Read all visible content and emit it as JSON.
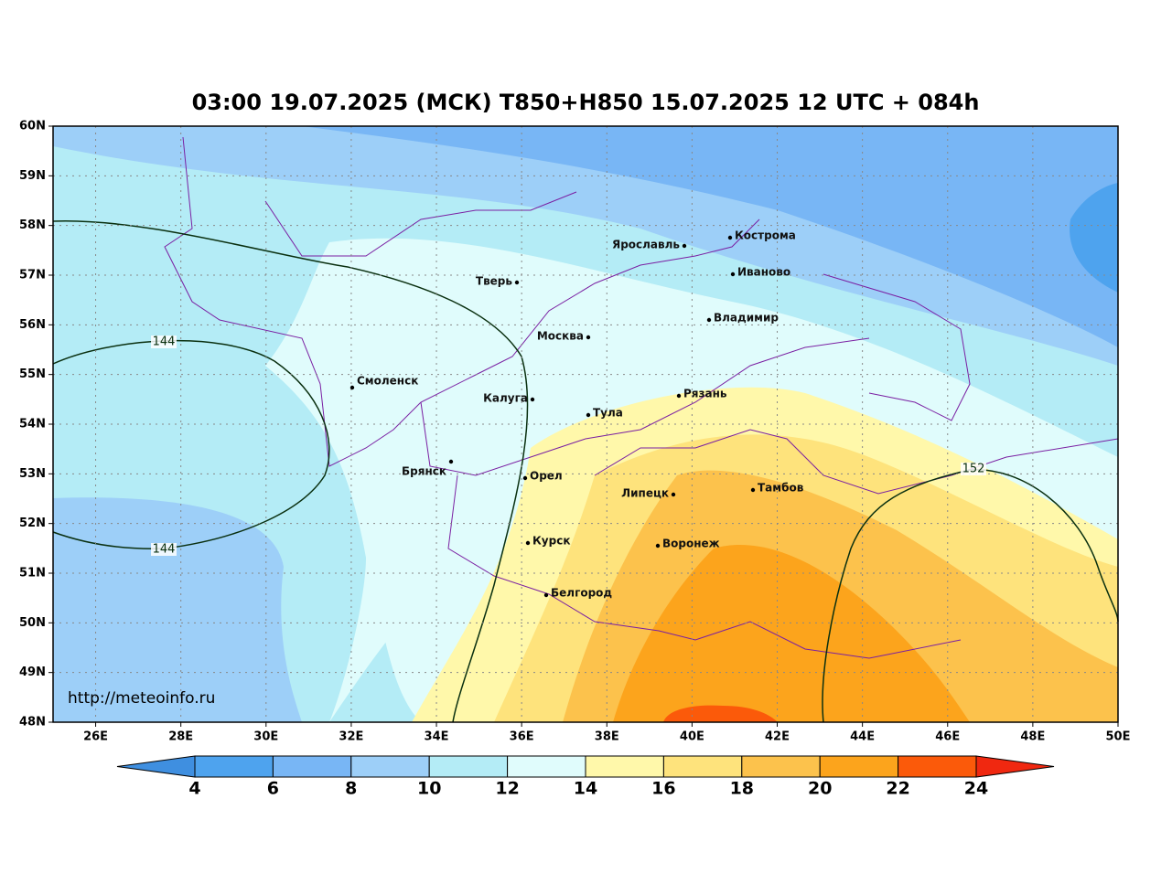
{
  "title": "03:00 19.07.2025 (МСК) T850+H850 15.07.2025 12 UTC + 084h",
  "url": "http://meteoinfo.ru",
  "lonlim": [
    25,
    50
  ],
  "latlim": [
    48,
    60
  ],
  "lon_ticks": [
    {
      "value": 26,
      "label": "26E"
    },
    {
      "value": 28,
      "label": "28E"
    },
    {
      "value": 30,
      "label": "30E"
    },
    {
      "value": 32,
      "label": "32E"
    },
    {
      "value": 34,
      "label": "34E"
    },
    {
      "value": 36,
      "label": "36E"
    },
    {
      "value": 38,
      "label": "38E"
    },
    {
      "value": 40,
      "label": "40E"
    },
    {
      "value": 42,
      "label": "42E"
    },
    {
      "value": 44,
      "label": "44E"
    },
    {
      "value": 46,
      "label": "46E"
    },
    {
      "value": 48,
      "label": "48E"
    },
    {
      "value": 50,
      "label": "50E"
    }
  ],
  "lat_ticks": [
    {
      "value": 48,
      "label": "48N"
    },
    {
      "value": 49,
      "label": "49N"
    },
    {
      "value": 50,
      "label": "50N"
    },
    {
      "value": 51,
      "label": "51N"
    },
    {
      "value": 52,
      "label": "52N"
    },
    {
      "value": 53,
      "label": "53N"
    },
    {
      "value": 54,
      "label": "54N"
    },
    {
      "value": 55,
      "label": "55N"
    },
    {
      "value": 56,
      "label": "56N"
    },
    {
      "value": 57,
      "label": "57N"
    },
    {
      "value": 58,
      "label": "58N"
    },
    {
      "value": 59,
      "label": "59N"
    },
    {
      "value": 60,
      "label": "60N"
    }
  ],
  "cities": [
    "Ярославль",
    "Кострома",
    "Иваново",
    "Тверь",
    "Владимир",
    "Москва",
    "Смоленск",
    "Калуга",
    "Рязань",
    "Тула",
    "Брянск",
    "Орел",
    "Липецк",
    "Тамбов",
    "Курск",
    "Воронеж",
    "Белгород"
  ],
  "contour_labels": [
    "144",
    "144",
    "152"
  ],
  "colorbar": {
    "ticks": [
      4,
      6,
      8,
      10,
      12,
      14,
      16,
      18,
      20,
      22,
      24
    ],
    "colors": [
      "#4ea3ee",
      "#78b6f5",
      "#9dcff8",
      "#b4ecf6",
      "#e0fcfc",
      "#fff8aa",
      "#fee37c",
      "#fcc24c",
      "#fca41c",
      "#fb5a0a"
    ],
    "under_color": "#3f8fe0",
    "over_color": "#f02810"
  }
}
